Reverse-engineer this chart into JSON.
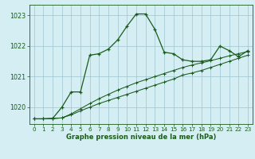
{
  "xlabel": "Graphe pression niveau de la mer (hPa)",
  "bg_color": "#d4eef4",
  "grid_color": "#9ec4cc",
  "line_color": "#1a5c1a",
  "xlim": [
    -0.5,
    23.5
  ],
  "ylim": [
    1019.45,
    1023.35
  ],
  "yticks": [
    1020,
    1021,
    1022,
    1023
  ],
  "xticks": [
    0,
    1,
    2,
    3,
    4,
    5,
    6,
    7,
    8,
    9,
    10,
    11,
    12,
    13,
    14,
    15,
    16,
    17,
    18,
    19,
    20,
    21,
    22,
    23
  ],
  "series1": [
    1019.62,
    1019.62,
    1019.63,
    1020.0,
    1020.5,
    1020.5,
    1021.7,
    1021.75,
    1021.9,
    1022.2,
    1022.65,
    1023.05,
    1023.05,
    1022.55,
    1021.8,
    1021.75,
    1021.55,
    1021.5,
    1021.5,
    1021.55,
    1022.0,
    1021.85,
    1021.65,
    1021.85
  ],
  "series2": [
    1019.62,
    1019.62,
    1019.63,
    1019.65,
    1019.75,
    1019.88,
    1020.0,
    1020.12,
    1020.22,
    1020.32,
    1020.42,
    1020.52,
    1020.62,
    1020.72,
    1020.82,
    1020.92,
    1021.05,
    1021.12,
    1021.2,
    1021.3,
    1021.4,
    1021.5,
    1021.6,
    1021.7
  ],
  "series3": [
    1019.62,
    1019.62,
    1019.63,
    1019.65,
    1019.78,
    1019.95,
    1020.12,
    1020.28,
    1020.42,
    1020.56,
    1020.68,
    1020.8,
    1020.9,
    1021.0,
    1021.1,
    1021.2,
    1021.3,
    1021.38,
    1021.45,
    1021.52,
    1021.6,
    1021.68,
    1021.75,
    1021.82
  ]
}
